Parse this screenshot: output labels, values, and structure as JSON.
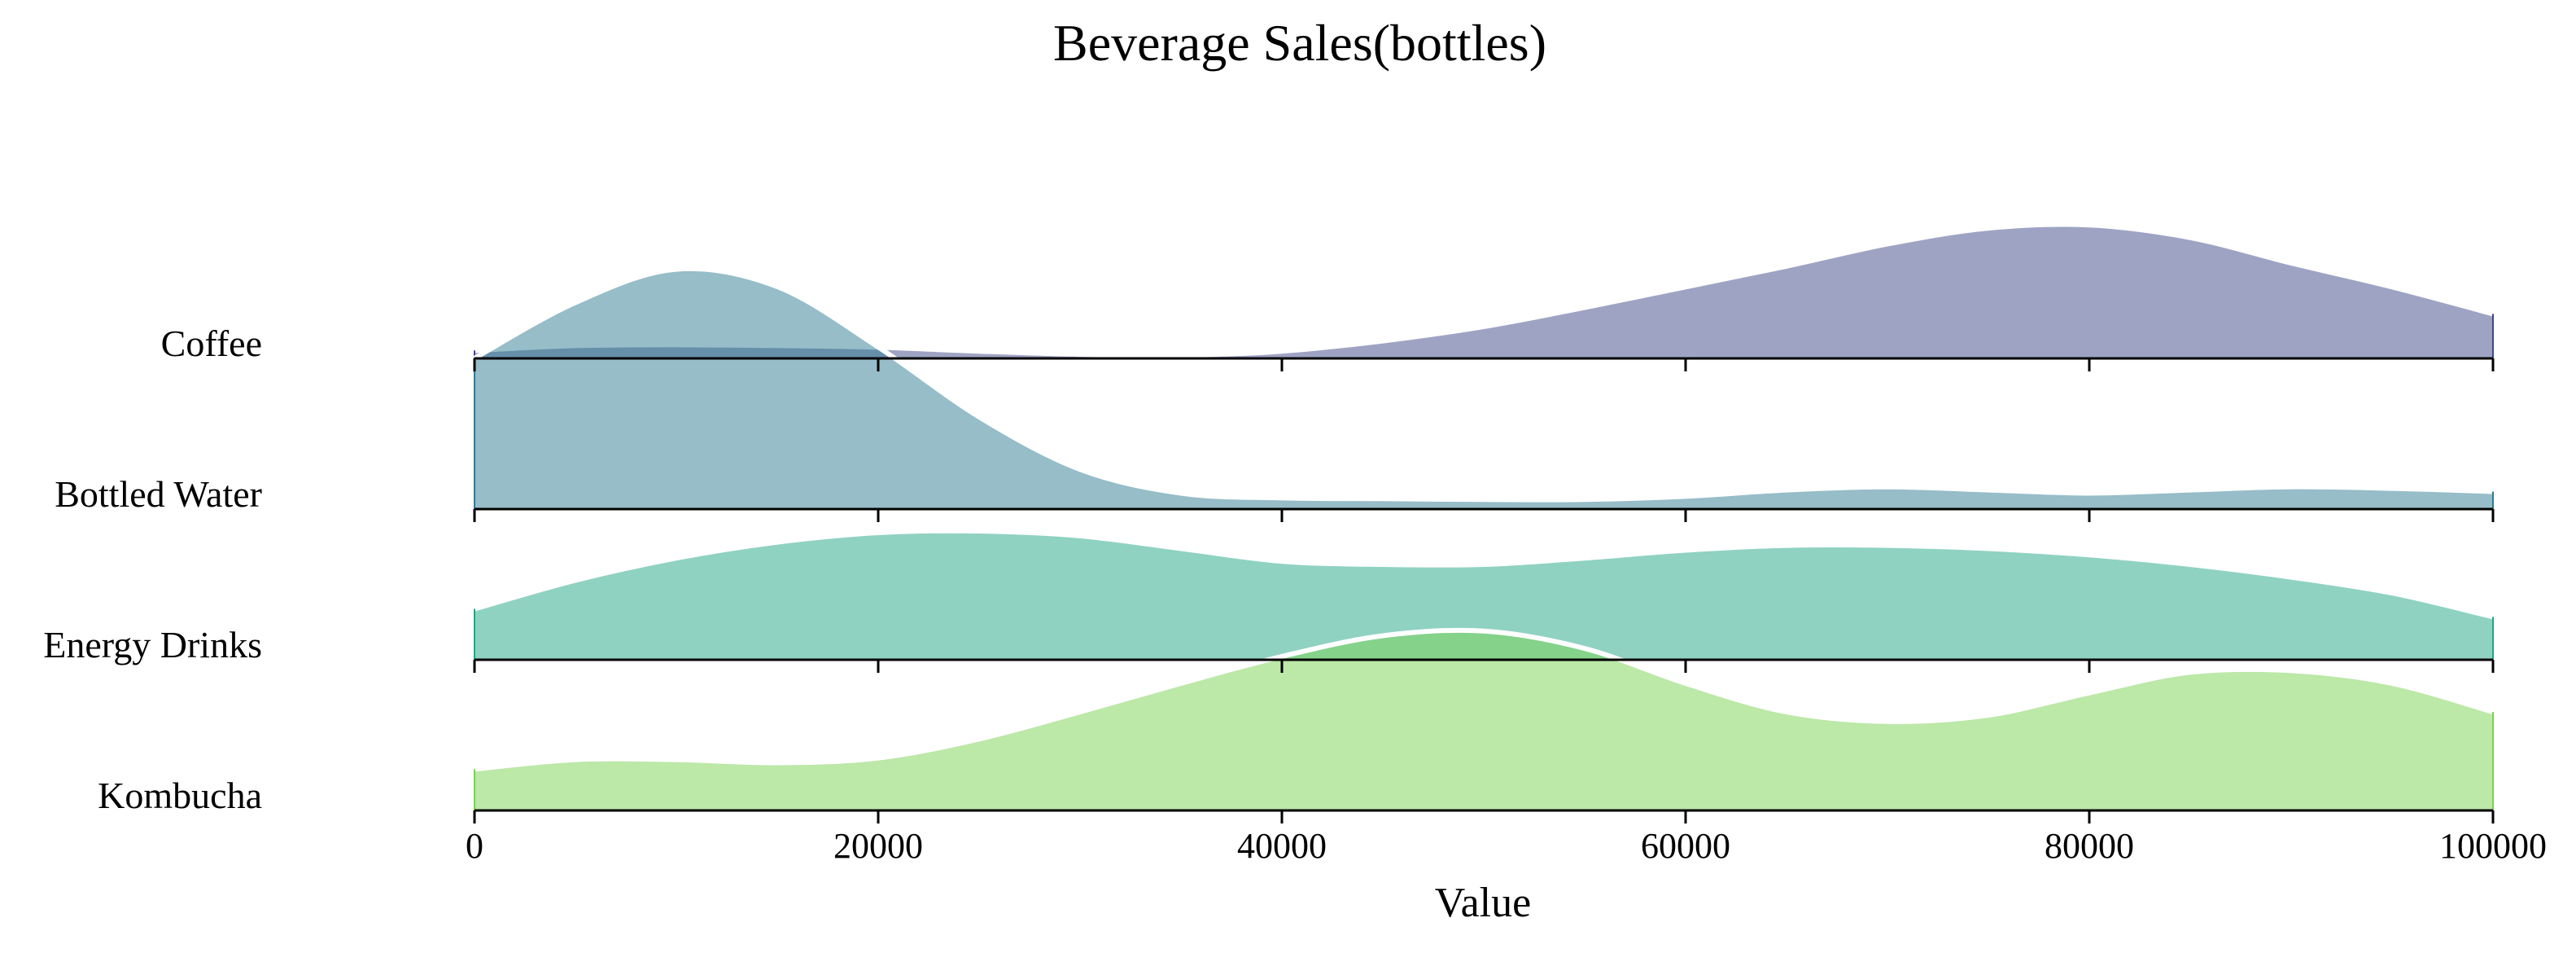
{
  "chart_data": {
    "type": "ridgeline",
    "title": "Beverage Sales(bottles)",
    "xlabel": "Value",
    "ylabel": "",
    "xlim": [
      0,
      100000
    ],
    "xticks": [
      0,
      20000,
      40000,
      60000,
      80000,
      100000
    ],
    "xtick_labels": [
      "0",
      "20000",
      "40000",
      "60000",
      "80000",
      "100000"
    ],
    "grid": false,
    "series": [
      {
        "name": "Coffee",
        "color": "#3f4788",
        "x": [
          0,
          5000,
          10000,
          15000,
          20000,
          25000,
          30000,
          35000,
          40000,
          45000,
          50000,
          55000,
          60000,
          65000,
          70000,
          75000,
          80000,
          85000,
          90000,
          95000,
          100000
        ],
        "y": [
          0.05,
          0.08,
          0.085,
          0.08,
          0.07,
          0.045,
          0.025,
          0.02,
          0.045,
          0.11,
          0.2,
          0.32,
          0.45,
          0.58,
          0.72,
          0.82,
          0.84,
          0.76,
          0.6,
          0.45,
          0.28
        ]
      },
      {
        "name": "Bottled Water",
        "color": "#2e7b91",
        "x": [
          0,
          5000,
          10000,
          15000,
          20000,
          25000,
          30000,
          35000,
          40000,
          45000,
          50000,
          55000,
          60000,
          65000,
          70000,
          75000,
          80000,
          85000,
          90000,
          95000,
          100000
        ],
        "y": [
          0.95,
          1.3,
          1.51,
          1.4,
          1.02,
          0.58,
          0.25,
          0.1,
          0.07,
          0.065,
          0.06,
          0.06,
          0.08,
          0.12,
          0.14,
          0.12,
          0.1,
          0.12,
          0.14,
          0.13,
          0.11
        ]
      },
      {
        "name": "Energy Drinks",
        "color": "#21a585",
        "x": [
          0,
          5000,
          10000,
          15000,
          20000,
          25000,
          30000,
          35000,
          40000,
          45000,
          50000,
          55000,
          60000,
          65000,
          70000,
          75000,
          80000,
          85000,
          90000,
          95000,
          100000
        ],
        "y": [
          0.32,
          0.5,
          0.64,
          0.74,
          0.8,
          0.81,
          0.78,
          0.7,
          0.62,
          0.6,
          0.6,
          0.64,
          0.69,
          0.72,
          0.72,
          0.7,
          0.66,
          0.6,
          0.52,
          0.42,
          0.27
        ]
      },
      {
        "name": "Kombucha",
        "color": "#7ad151",
        "x": [
          0,
          5000,
          10000,
          15000,
          20000,
          25000,
          30000,
          35000,
          40000,
          45000,
          50000,
          55000,
          60000,
          65000,
          70000,
          75000,
          80000,
          85000,
          90000,
          95000,
          100000
        ],
        "y": [
          0.26,
          0.32,
          0.32,
          0.3,
          0.33,
          0.45,
          0.62,
          0.8,
          0.97,
          1.1,
          1.13,
          1.02,
          0.8,
          0.62,
          0.56,
          0.6,
          0.74,
          0.87,
          0.88,
          0.8,
          0.62
        ]
      }
    ]
  }
}
